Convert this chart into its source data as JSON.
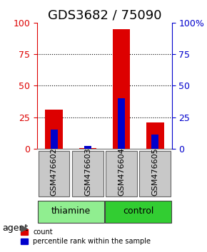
{
  "title": "GDS3682 / 75090",
  "samples": [
    "GSM476602",
    "GSM476603",
    "GSM476604",
    "GSM476605"
  ],
  "red_values": [
    31,
    0.5,
    95,
    21
  ],
  "blue_values": [
    15,
    2,
    40,
    11
  ],
  "ylim": [
    0,
    100
  ],
  "gridlines": [
    25,
    50,
    75
  ],
  "groups": [
    {
      "label": "thiamine",
      "samples": [
        0,
        1
      ],
      "color": "#90EE90"
    },
    {
      "label": "control",
      "samples": [
        2,
        3
      ],
      "color": "#32CD32"
    }
  ],
  "agent_label": "agent",
  "left_ticks": [
    0,
    25,
    50,
    75,
    100
  ],
  "right_ticks": [
    0,
    25,
    50,
    75,
    100
  ],
  "right_tick_labels": [
    "0",
    "25",
    "50",
    "75",
    "100%"
  ],
  "red_color": "#DD0000",
  "blue_color": "#0000CC",
  "bar_width": 0.35,
  "sample_box_color": "#C8C8C8",
  "sample_box_border": "#666666",
  "left_tick_color": "#DD0000",
  "right_tick_color": "#0000CC",
  "legend_red_label": "count",
  "legend_blue_label": "percentile rank within the sample",
  "title_fontsize": 13,
  "tick_fontsize": 9,
  "label_fontsize": 9,
  "sample_fontsize": 8,
  "agent_fontsize": 9
}
